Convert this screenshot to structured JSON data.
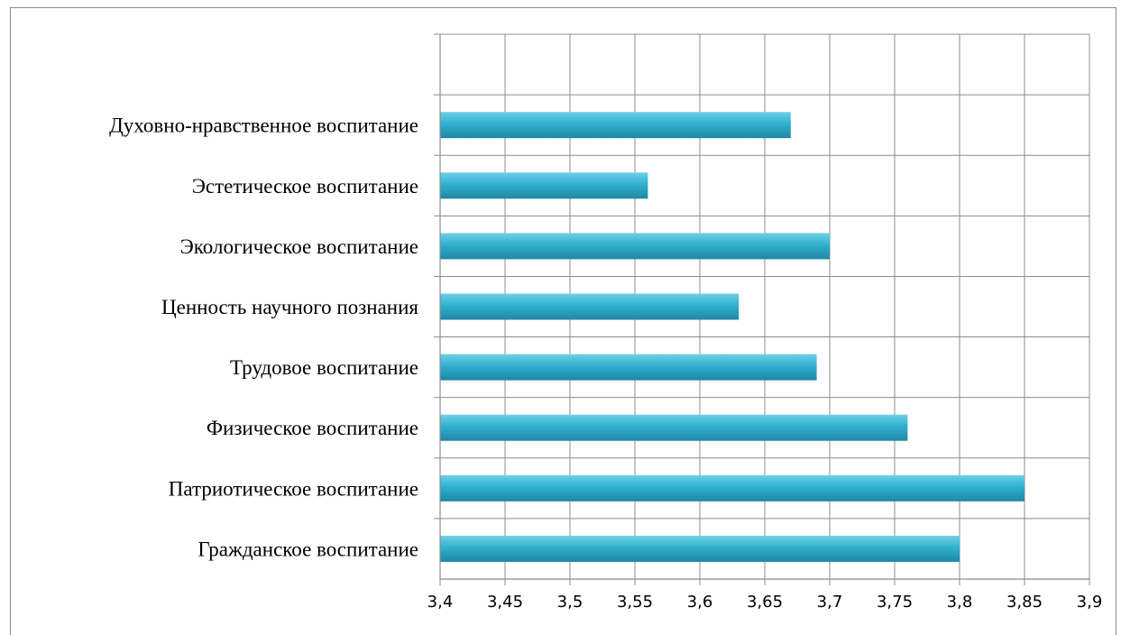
{
  "chart_data": {
    "type": "bar",
    "orientation": "horizontal",
    "categories": [
      "Гражданское воспитание",
      "Патриотическое воспитание",
      "Физическое воспитание",
      "Трудовое воспитание",
      "Ценность научного познания",
      "Экологическое воспитание",
      "Эстетическое воспитание",
      "Духовно-нравственное воспитание"
    ],
    "values": [
      3.8,
      3.85,
      3.76,
      3.69,
      3.63,
      3.7,
      3.56,
      3.67
    ],
    "xlim": [
      3.4,
      3.9
    ],
    "xticks": [
      "3,4",
      "3,45",
      "3,5",
      "3,55",
      "3,6",
      "3,65",
      "3,7",
      "3,75",
      "3,8",
      "3,85",
      "3,9"
    ],
    "grid": true,
    "bar_color": "#2ba6c4",
    "title": "",
    "xlabel": "",
    "ylabel": ""
  }
}
